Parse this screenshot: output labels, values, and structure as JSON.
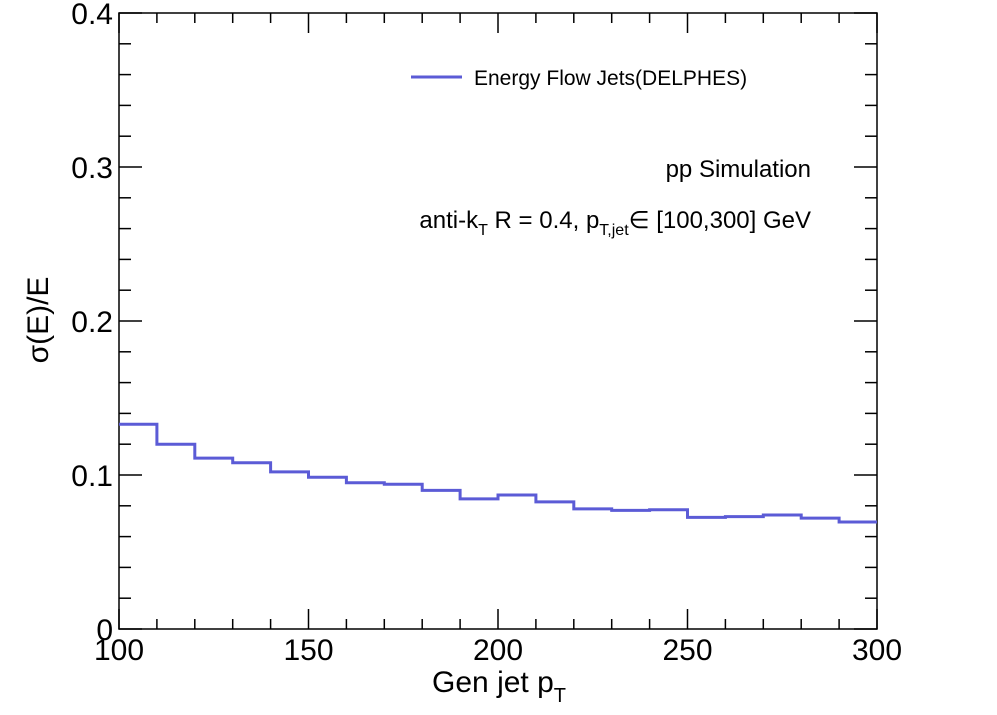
{
  "chart_data": {
    "type": "line",
    "step": true,
    "xlabel_main": "Gen jet p",
    "xlabel_sub": "T",
    "ylabel": "σ(E)/E",
    "xlim": [
      100,
      300
    ],
    "ylim": [
      0,
      0.4
    ],
    "x_major_ticks": [
      100,
      150,
      200,
      250,
      300
    ],
    "x_tick_labels": [
      "100",
      "150",
      "200",
      "250",
      "300"
    ],
    "y_major_ticks": [
      0,
      0.1,
      0.2,
      0.3,
      0.4
    ],
    "y_tick_labels": [
      "0",
      "0.1",
      "0.2",
      "0.3",
      "0.4"
    ],
    "series": [
      {
        "name": "Energy Flow Jets(DELPHES)",
        "color": "#5b5bd6",
        "bin_edges": [
          100,
          110,
          120,
          130,
          140,
          150,
          160,
          170,
          180,
          190,
          200,
          210,
          220,
          230,
          240,
          250,
          260,
          270,
          280,
          290,
          300
        ],
        "values": [
          0.133,
          0.12,
          0.111,
          0.108,
          0.102,
          0.0985,
          0.095,
          0.094,
          0.09,
          0.0845,
          0.087,
          0.0825,
          0.078,
          0.077,
          0.0775,
          0.0725,
          0.073,
          0.074,
          0.072,
          0.0695
        ]
      }
    ],
    "annotations": {
      "line1": "pp Simulation",
      "line2_a": "anti-k",
      "line2_a_sub": "T",
      "line2_b": " R = 0.4, p",
      "line2_b_sub": "T,jet",
      "line2_c": "∈ [100,300] GeV"
    }
  }
}
